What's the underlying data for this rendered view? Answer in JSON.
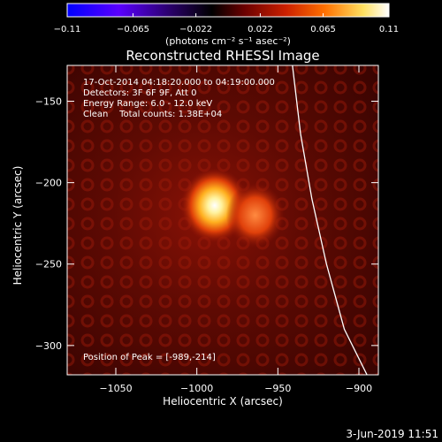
{
  "chart_data": {
    "type": "heatmap",
    "title": "Reconstructed RHESSI Image",
    "xlabel": "Heliocentric X (arcsec)",
    "ylabel": "Heliocentric Y (arcsec)",
    "xlim": [
      -1080,
      -888
    ],
    "ylim": [
      -318,
      -128
    ],
    "x_ticks": [
      -1050,
      -1000,
      -950,
      -900
    ],
    "x_tick_labels": [
      "−1050",
      "−1000",
      "−950",
      "−900"
    ],
    "y_ticks": [
      -150,
      -200,
      -250,
      -300
    ],
    "y_tick_labels": [
      "−150",
      "−200",
      "−250",
      "−300"
    ],
    "colorbar": {
      "min": -0.11,
      "max": 0.11,
      "ticks": [
        -0.11,
        -0.065,
        -0.022,
        0.022,
        0.065,
        0.11
      ],
      "tick_labels": [
        "−0.11",
        "−0.065",
        "−0.022",
        "0.022",
        "0.065",
        "0.11"
      ],
      "units_label": "(photons cm⁻² s⁻¹ asec⁻²)",
      "colormap": [
        "#0000ff",
        "#5a00ff",
        "#2a006a",
        "#000000",
        "#6a0000",
        "#cc2000",
        "#ff7000",
        "#ffe060",
        "#ffffff"
      ]
    },
    "annotations": [
      "17-Oct-2014 04:18:20.000 to 04:19:00.000",
      "Detectors: 3F 6F 9F, Att 0",
      "Energy Range: 6.0 - 12.0 keV",
      "Clean    Total counts: 1.38E+04"
    ],
    "peak_label": "Position of Peak = [-989,-214]",
    "sources": [
      {
        "x": -989,
        "y": -214,
        "intensity": 0.11,
        "sigma": 7
      },
      {
        "x": -964,
        "y": -220,
        "intensity": 0.05,
        "sigma": 6
      }
    ],
    "limb_curve": [
      [
        -941,
        -128
      ],
      [
        -936,
        -170
      ],
      [
        -929,
        -210
      ],
      [
        -920,
        -250
      ],
      [
        -909,
        -290
      ],
      [
        -895,
        -318
      ]
    ],
    "grid": false
  },
  "footer": {
    "date": "3-Jun-2019 11:51"
  }
}
